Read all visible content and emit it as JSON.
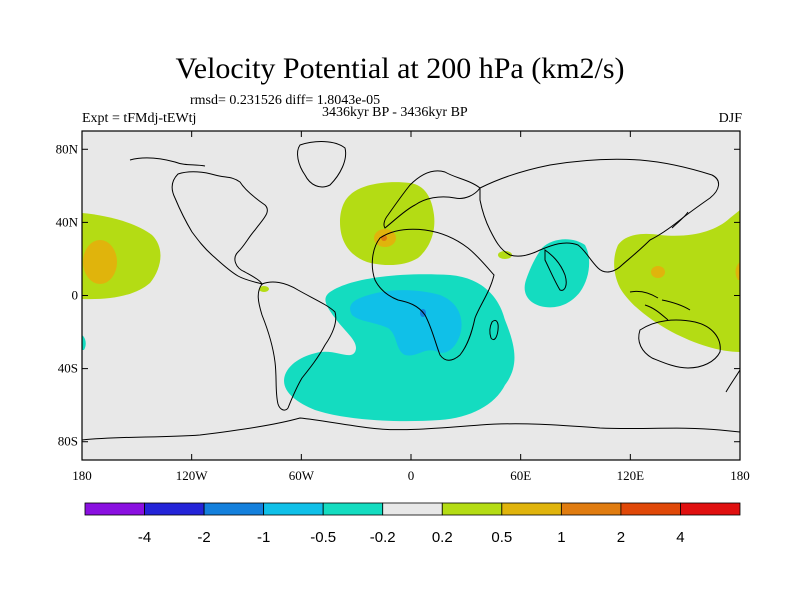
{
  "title": "Velocity Potential at 200 hPa (km2/s)",
  "stats_line": "rmsd= 0.231526 diff= 1.8043e-05",
  "experiment": "Expt = tFMdj-tEWtj",
  "period": "3436kyr BP - 3436kyr BP",
  "season": "DJF",
  "map": {
    "lon_range": [
      -180,
      180
    ],
    "lat_range": [
      -90,
      90
    ],
    "land_color": "#e8e8e8",
    "coast_color": "#000000"
  },
  "axes": {
    "y_ticks": [
      {
        "value": 80,
        "label": "80N"
      },
      {
        "value": 40,
        "label": "40N"
      },
      {
        "value": 0,
        "label": "0"
      },
      {
        "value": -40,
        "label": "40S"
      },
      {
        "value": -80,
        "label": "80S"
      }
    ],
    "x_ticks": [
      {
        "value": -180,
        "label": "180"
      },
      {
        "value": -120,
        "label": "120W"
      },
      {
        "value": -60,
        "label": "60W"
      },
      {
        "value": 0,
        "label": "0"
      },
      {
        "value": 60,
        "label": "60E"
      },
      {
        "value": 120,
        "label": "120E"
      },
      {
        "value": 180,
        "label": "180"
      }
    ]
  },
  "colorbar": {
    "colors": [
      "#8a10e0",
      "#2424d8",
      "#1480dc",
      "#10c0e8",
      "#14dcc0",
      "#e8e8e8",
      "#b4dc14",
      "#e0b40c",
      "#e07c10",
      "#e04808",
      "#e01010"
    ],
    "labels": [
      "-4",
      "-2",
      "-1",
      "-0.5",
      "-0.2",
      "0.2",
      "0.5",
      "1",
      "2",
      "4"
    ]
  }
}
